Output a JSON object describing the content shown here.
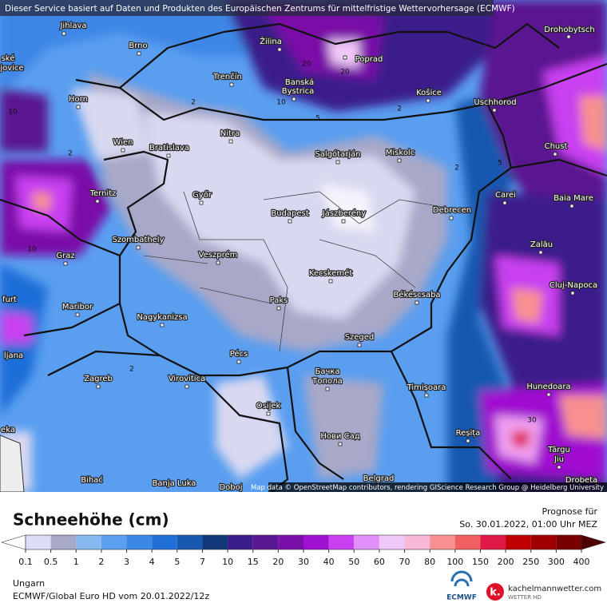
{
  "header": {
    "notice": "Dieser Service basiert auf Daten und Produkten des Europäischen Zentrums für mittelfristige Wettervorhersage (ECMWF)"
  },
  "map": {
    "cities": [
      "Jihlava",
      "ské",
      "jovice",
      "Brno",
      "Žilina",
      "Poprad",
      "Drohobytsch",
      "Trenčín",
      "Banská",
      "Bystrica",
      "Košice",
      "Horn",
      "Uschhorod",
      "Nitra",
      "Wien",
      "Bratislava",
      "Salgótarján",
      "Miskolc",
      "Chust",
      "Ternitz",
      "Győr",
      "Carei",
      "Baia Mare",
      "Budapest",
      "Jászberény",
      "Debrecen",
      "Szombathely",
      "Zalău",
      "Graz",
      "Veszprém",
      "Kecskemét",
      "Cluj-Napoca",
      "Paks",
      "furt",
      "Békéscsaba",
      "Maribor",
      "Nagykanizsa",
      "Szeged",
      "ljana",
      "Pécs",
      "Бачка",
      "Топола",
      "Zagreb",
      "Virovitica",
      "Timișoara",
      "Hunedoara",
      "Osijek",
      "eka",
      "Нови Сад",
      "Reșița",
      "Târgu",
      "Jiu",
      "Bihać",
      "Banja Luka",
      "Doboj",
      "Belgrad",
      "Drobeta"
    ],
    "contour_labels": [
      2,
      2,
      2,
      5,
      10,
      20,
      20,
      5,
      2,
      10,
      2,
      30,
      10
    ],
    "attribution": "Map data © OpenStreetMap contributors, rendering GIScience Research Group @ Heidelberg University"
  },
  "legend": {
    "title": "Schneehöhe (cm)",
    "forecast_label": "Prognose für",
    "forecast_time": "So. 30.01.2022, 01:00 Uhr MEZ",
    "ticks": [
      0.1,
      0.5,
      1,
      2,
      3,
      4,
      5,
      7,
      10,
      15,
      20,
      30,
      40,
      50,
      60,
      70,
      80,
      100,
      150,
      200,
      250,
      300,
      400
    ],
    "under_color": "#ffffff",
    "colors": [
      "#dcdcf4",
      "#a8a8c8",
      "#88b8f0",
      "#5ca0f0",
      "#3c88e8",
      "#2070d8",
      "#1858b0",
      "#103878",
      "#3a1c8a",
      "#5a1890",
      "#7a10a8",
      "#a010d0",
      "#c840f0",
      "#e090f8",
      "#f0c8f8",
      "#f8b8d8",
      "#f89090",
      "#f06060",
      "#e01848",
      "#c00000",
      "#a00000",
      "#780000"
    ],
    "over_color": "#500000"
  },
  "footer": {
    "region": "Ungarn",
    "model": "ECMWF/Global Euro HD vom 20.01.2022/12z",
    "ecmwf_logo": "ECMWF",
    "site": "kachelmannwetter.com",
    "site_sub": "WETTER HD"
  }
}
